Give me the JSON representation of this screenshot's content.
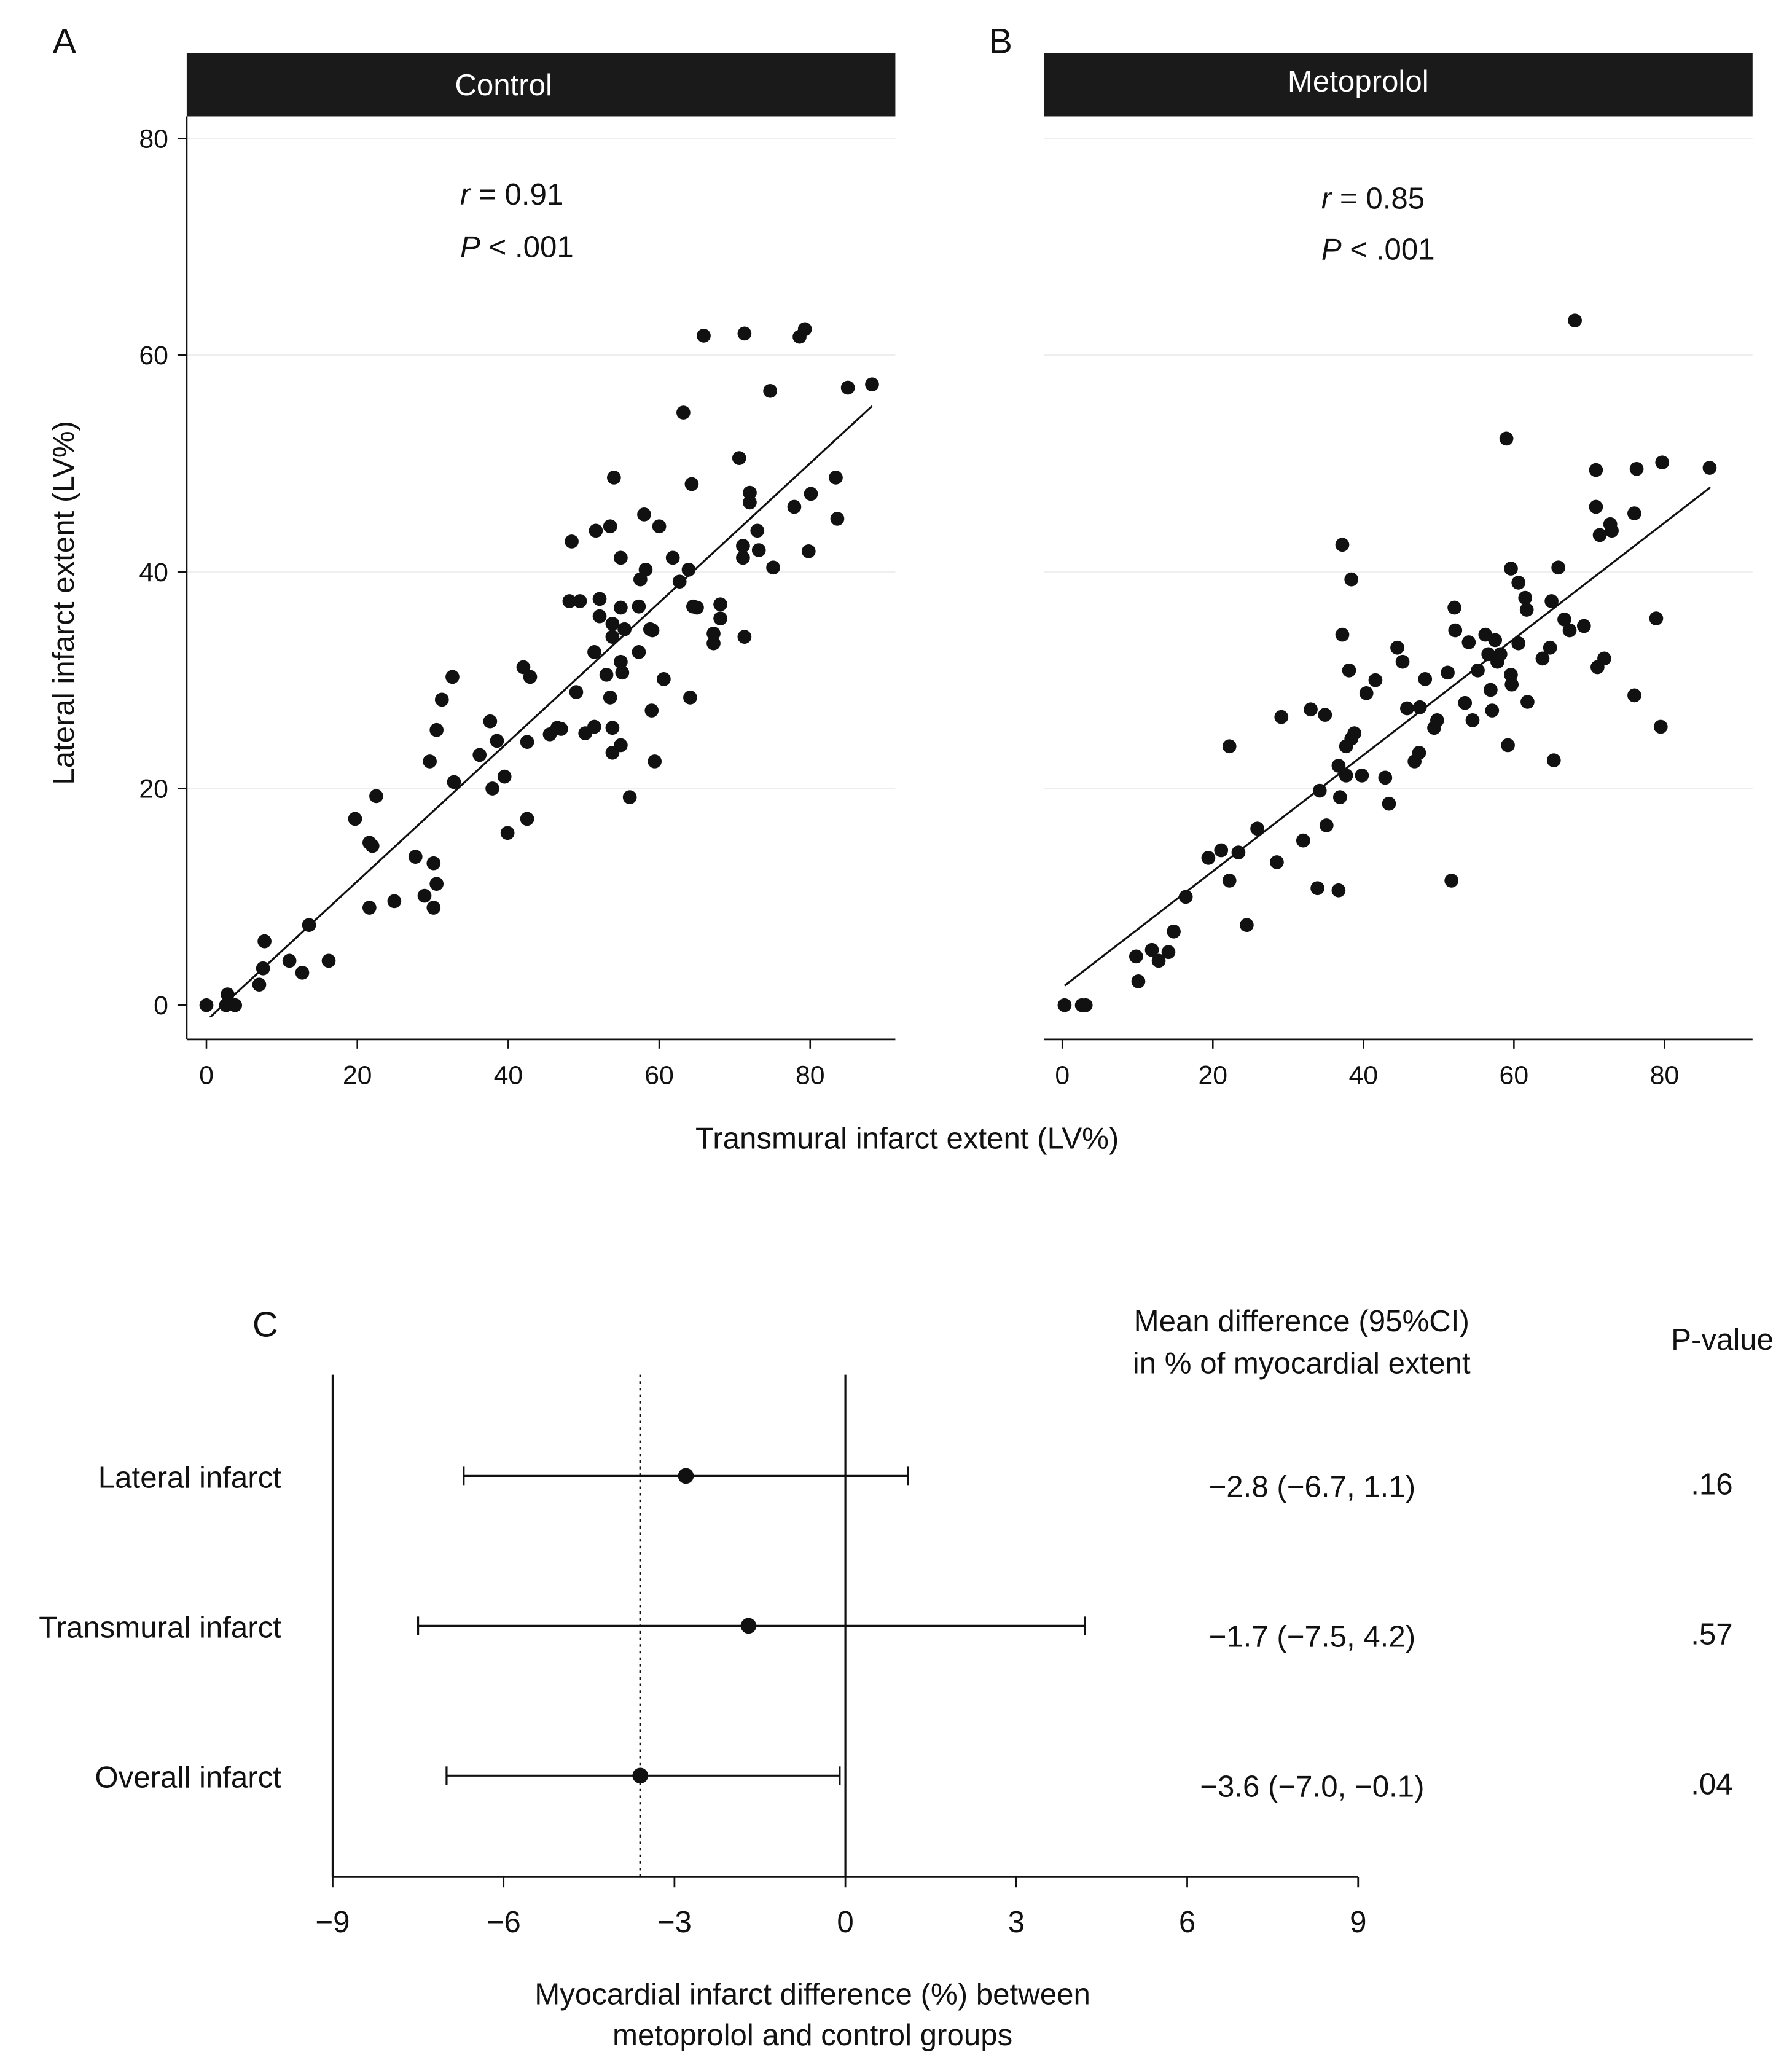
{
  "chart_data": [
    {
      "panel": "A",
      "type": "scatter",
      "title": "Control",
      "xlabel": "Transmural infarct extent (LV%)",
      "ylabel": "Lateral infarct extent (LV%)",
      "xlim": [
        0,
        90
      ],
      "ylim": [
        0,
        80
      ],
      "xticks": [
        0,
        20,
        40,
        60,
        80
      ],
      "yticks": [
        0,
        20,
        40,
        60,
        80
      ],
      "grid": "horizontal",
      "annotation": {
        "r_label": "r",
        "r_value": "= 0.91",
        "p_label": "P",
        "p_value": "< .001"
      },
      "fit_line": {
        "x": [
          0.5,
          88.2
        ],
        "y": [
          -1.1,
          55.3
        ]
      },
      "points": [
        [
          0,
          0
        ],
        [
          2.8,
          1
        ],
        [
          2.6,
          0
        ],
        [
          3.8,
          0
        ],
        [
          7,
          1.9
        ],
        [
          7.5,
          3.4
        ],
        [
          7.7,
          5.9
        ],
        [
          11,
          4.1
        ],
        [
          12.7,
          3
        ],
        [
          13.6,
          7.4
        ],
        [
          16.2,
          4.1
        ],
        [
          19.7,
          17.2
        ],
        [
          21.6,
          15
        ],
        [
          22,
          14.7
        ],
        [
          22.5,
          19.3
        ],
        [
          21.6,
          9
        ],
        [
          24.9,
          9.6
        ],
        [
          27.7,
          13.7
        ],
        [
          28.9,
          10.1
        ],
        [
          30.1,
          13.1
        ],
        [
          30.5,
          11.2
        ],
        [
          30.1,
          9
        ],
        [
          29.6,
          22.5
        ],
        [
          30.5,
          25.4
        ],
        [
          31.2,
          28.2
        ],
        [
          32.6,
          30.3
        ],
        [
          32.8,
          20.6
        ],
        [
          36.2,
          23.1
        ],
        [
          37.6,
          26.2
        ],
        [
          38.5,
          24.4
        ],
        [
          37.9,
          20
        ],
        [
          39.5,
          21.1
        ],
        [
          39.9,
          15.9
        ],
        [
          42,
          31.2
        ],
        [
          42.9,
          30.3
        ],
        [
          42.5,
          24.3
        ],
        [
          42.5,
          17.2
        ],
        [
          45.5,
          25
        ],
        [
          46.5,
          25.6
        ],
        [
          47,
          25.5
        ],
        [
          48.4,
          42.8
        ],
        [
          48.1,
          37.3
        ],
        [
          49.5,
          37.3
        ],
        [
          49,
          28.9
        ],
        [
          50.2,
          25.1
        ],
        [
          51.4,
          32.6
        ],
        [
          51.4,
          25.7
        ],
        [
          51.6,
          43.8
        ],
        [
          52.1,
          37.5
        ],
        [
          52.1,
          35.9
        ],
        [
          53,
          30.5
        ],
        [
          53.5,
          44.2
        ],
        [
          53.5,
          28.4
        ],
        [
          53.8,
          25.6
        ],
        [
          54,
          48.7
        ],
        [
          53.8,
          35.2
        ],
        [
          53.8,
          23.3
        ],
        [
          53.8,
          34
        ],
        [
          54.9,
          41.3
        ],
        [
          54.9,
          36.7
        ],
        [
          54.9,
          31.7
        ],
        [
          55.1,
          30.7
        ],
        [
          54.9,
          24
        ],
        [
          55.4,
          34.7
        ],
        [
          56.1,
          19.2
        ],
        [
          57.3,
          36.8
        ],
        [
          57.3,
          32.6
        ],
        [
          57.5,
          39.3
        ],
        [
          58,
          45.3
        ],
        [
          58.2,
          40.2
        ],
        [
          58.8,
          34.7
        ],
        [
          59.1,
          34.6
        ],
        [
          59,
          27.2
        ],
        [
          59.4,
          22.5
        ],
        [
          60,
          44.2
        ],
        [
          60.6,
          30.1
        ],
        [
          61.8,
          41.3
        ],
        [
          62.7,
          39.1
        ],
        [
          63.2,
          54.7
        ],
        [
          63.9,
          40.2
        ],
        [
          64.1,
          28.4
        ],
        [
          64.3,
          48.1
        ],
        [
          64.5,
          36.8
        ],
        [
          65,
          36.7
        ],
        [
          65.9,
          61.8
        ],
        [
          67.2,
          34.3
        ],
        [
          67.2,
          33.4
        ],
        [
          68.1,
          37
        ],
        [
          68.1,
          35.7
        ],
        [
          70.6,
          50.5
        ],
        [
          71.3,
          62
        ],
        [
          71.1,
          42.4
        ],
        [
          71.1,
          41.3
        ],
        [
          71.3,
          34
        ],
        [
          72,
          47.3
        ],
        [
          72,
          46.4
        ],
        [
          73,
          43.8
        ],
        [
          73.2,
          42
        ],
        [
          74.7,
          56.7
        ],
        [
          75.1,
          40.4
        ],
        [
          77.9,
          46
        ],
        [
          78.6,
          61.7
        ],
        [
          79.3,
          62.4
        ],
        [
          79.8,
          41.9
        ],
        [
          80.1,
          47.2
        ],
        [
          83.4,
          48.7
        ],
        [
          83.6,
          44.9
        ],
        [
          85,
          57
        ],
        [
          88.2,
          57.3
        ]
      ]
    },
    {
      "panel": "B",
      "type": "scatter",
      "title": "Metoprolol",
      "xlim": [
        0,
        90
      ],
      "ylim": [
        0,
        80
      ],
      "xticks": [
        0,
        20,
        40,
        60,
        80
      ],
      "grid": "horizontal",
      "annotation": {
        "r_label": "r",
        "r_value": "= 0.85",
        "p_label": "P",
        "p_value": "< .001"
      },
      "fit_line": {
        "x": [
          0.3,
          86.1
        ],
        "y": [
          1.8,
          47.8
        ]
      },
      "points": [
        [
          0.3,
          0
        ],
        [
          2.6,
          0
        ],
        [
          3.1,
          0
        ],
        [
          10.1,
          2.2
        ],
        [
          9.8,
          4.5
        ],
        [
          11.9,
          5.1
        ],
        [
          12.8,
          4.1
        ],
        [
          14.1,
          4.9
        ],
        [
          14.8,
          6.8
        ],
        [
          16.4,
          10
        ],
        [
          19.4,
          13.6
        ],
        [
          21.1,
          14.3
        ],
        [
          22.2,
          23.9
        ],
        [
          22.2,
          11.5
        ],
        [
          23.4,
          14.1
        ],
        [
          24.5,
          7.4
        ],
        [
          25.9,
          16.3
        ],
        [
          28.5,
          13.2
        ],
        [
          29.1,
          26.6
        ],
        [
          32,
          15.2
        ],
        [
          33,
          27.3
        ],
        [
          33.9,
          10.8
        ],
        [
          34.2,
          19.8
        ],
        [
          34.9,
          26.8
        ],
        [
          35.1,
          16.6
        ],
        [
          36.7,
          10.6
        ],
        [
          36.9,
          19.2
        ],
        [
          36.7,
          22.1
        ],
        [
          37.2,
          34.2
        ],
        [
          37.2,
          42.5
        ],
        [
          38.1,
          30.9
        ],
        [
          37.7,
          21.2
        ],
        [
          37.7,
          23.9
        ],
        [
          38.4,
          39.3
        ],
        [
          38.4,
          24.6
        ],
        [
          38.8,
          25.1
        ],
        [
          39.8,
          21.2
        ],
        [
          40.4,
          28.8
        ],
        [
          41.6,
          30
        ],
        [
          42.9,
          21
        ],
        [
          43.4,
          18.6
        ],
        [
          44.5,
          33
        ],
        [
          45.2,
          31.7
        ],
        [
          45.8,
          27.4
        ],
        [
          46.8,
          22.5
        ],
        [
          47.4,
          23.3
        ],
        [
          47.5,
          27.5
        ],
        [
          48.2,
          30.1
        ],
        [
          49.4,
          25.6
        ],
        [
          49.8,
          26.3
        ],
        [
          51.2,
          30.7
        ],
        [
          51.7,
          11.5
        ],
        [
          52.1,
          36.7
        ],
        [
          52.2,
          34.6
        ],
        [
          53.5,
          27.9
        ],
        [
          54,
          33.5
        ],
        [
          54.5,
          26.3
        ],
        [
          55.2,
          30.9
        ],
        [
          56.2,
          34.2
        ],
        [
          56.6,
          32.4
        ],
        [
          56.9,
          29.1
        ],
        [
          57.1,
          27.2
        ],
        [
          57.5,
          33.7
        ],
        [
          57.8,
          31.7
        ],
        [
          58.2,
          32.4
        ],
        [
          59,
          52.3
        ],
        [
          59.2,
          24
        ],
        [
          59.6,
          40.3
        ],
        [
          59.6,
          30.5
        ],
        [
          59.7,
          29.6
        ],
        [
          60.6,
          33.4
        ],
        [
          60.6,
          39
        ],
        [
          61.5,
          37.6
        ],
        [
          61.7,
          36.5
        ],
        [
          61.8,
          28
        ],
        [
          63.8,
          32
        ],
        [
          64.8,
          33
        ],
        [
          65,
          37.3
        ],
        [
          65.3,
          22.6
        ],
        [
          65.9,
          40.4
        ],
        [
          66.7,
          35.6
        ],
        [
          67.4,
          34.6
        ],
        [
          68.1,
          63.2
        ],
        [
          69.3,
          35
        ],
        [
          70.9,
          49.4
        ],
        [
          70.9,
          46
        ],
        [
          71.1,
          31.2
        ],
        [
          71.4,
          43.4
        ],
        [
          72,
          32
        ],
        [
          72.8,
          44.4
        ],
        [
          73,
          43.8
        ],
        [
          76,
          45.4
        ],
        [
          76,
          28.6
        ],
        [
          76.3,
          49.5
        ],
        [
          78.9,
          35.7
        ],
        [
          79.5,
          25.7
        ],
        [
          79.7,
          50.1
        ],
        [
          86,
          49.6
        ]
      ]
    },
    {
      "panel": "C",
      "type": "forest",
      "xlabel_line1": "Myocardial infarct difference (%) between",
      "xlabel_line2": "metoprolol and control groups",
      "xlim": [
        -9,
        9
      ],
      "xticks": [
        -9,
        -6,
        -3,
        0,
        3,
        6,
        9
      ],
      "xtick_labels": [
        "−9",
        "−6",
        "−3",
        "0",
        "3",
        "6",
        "9"
      ],
      "reference_line": -3.6,
      "col_header_1_line1": "Mean difference (95%CI)",
      "col_header_1_line2": "in % of myocardial extent",
      "col_header_2": "P-value",
      "rows": [
        {
          "label": "Lateral infarct",
          "mean": -2.8,
          "lo": -6.7,
          "hi": 1.1,
          "text": "−2.8 (−6.7, 1.1)",
          "p": ".16"
        },
        {
          "label": "Transmural infarct",
          "mean": -1.7,
          "lo": -7.5,
          "hi": 4.2,
          "text": "−1.7 (−7.5, 4.2)",
          "p": ".57"
        },
        {
          "label": "Overall infarct",
          "mean": -3.6,
          "lo": -7.0,
          "hi": -0.1,
          "text": "−3.6 (−7.0, −0.1)",
          "p": ".04"
        }
      ]
    }
  ],
  "labels": {
    "A": "A",
    "B": "B",
    "C": "C"
  }
}
